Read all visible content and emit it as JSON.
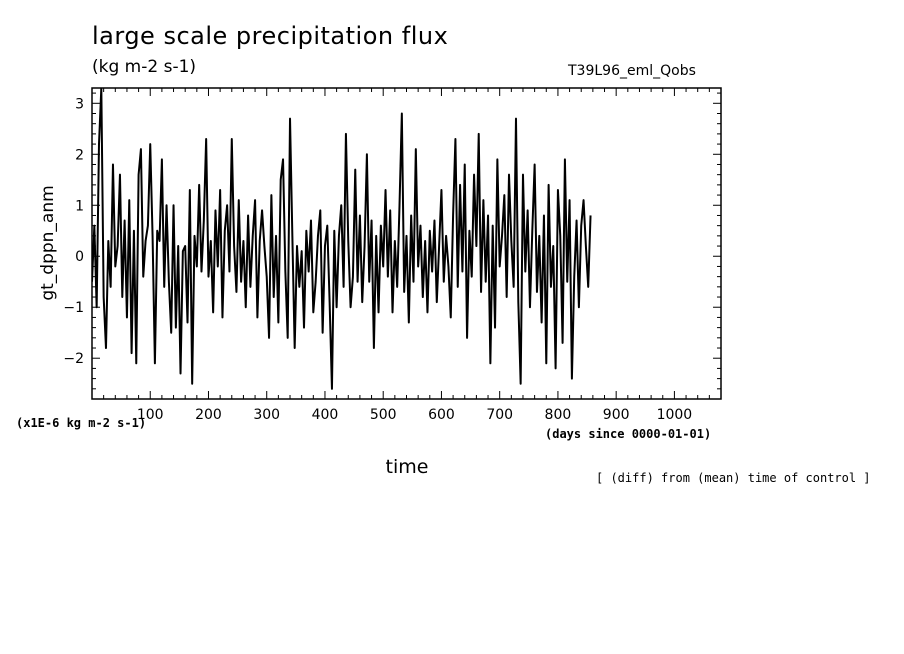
{
  "chart_data": {
    "type": "line",
    "title": "large scale precipitation flux",
    "units_label": "(kg m-2 s-1)",
    "case_label": "T39L96_eml_Qobs",
    "ylabel": "gt_dppn_anm",
    "xlabel": "time",
    "scale_note": "(x1E-6 kg m-2 s-1)",
    "time_units_label": "(days since 0000-01-01)",
    "diff_note": "[ (diff) from (mean) time of control ]",
    "xlim": [
      0,
      1080
    ],
    "ylim": [
      -2.8,
      3.3
    ],
    "x_ticks": [
      100,
      200,
      300,
      400,
      500,
      600,
      700,
      800,
      900,
      1000
    ],
    "x_tick_labels": [
      "100",
      "200",
      "300",
      "400",
      "500",
      "600",
      "700",
      "800",
      "900",
      "1000"
    ],
    "y_ticks": [
      -2,
      -1,
      0,
      1,
      2,
      3
    ],
    "y_tick_labels": [
      "−2",
      "−1",
      "0",
      "1",
      "2",
      "3"
    ],
    "series": [
      {
        "name": "gt_dppn_anm",
        "x_start": 0,
        "x_step": 4,
        "values": [
          -0.5,
          0.6,
          -1.0,
          2.2,
          3.3,
          -0.8,
          -1.8,
          0.3,
          -0.6,
          1.8,
          -0.2,
          0.2,
          1.6,
          -0.8,
          0.7,
          -1.2,
          1.1,
          -1.9,
          0.5,
          -2.1,
          1.6,
          2.1,
          -0.4,
          0.3,
          0.6,
          2.2,
          0.4,
          -2.1,
          0.5,
          0.3,
          1.9,
          -0.6,
          1.0,
          -0.5,
          -1.5,
          1.0,
          -1.4,
          0.2,
          -2.3,
          0.1,
          0.2,
          -1.3,
          1.3,
          -2.5,
          0.4,
          -0.2,
          1.4,
          -0.3,
          0.7,
          2.3,
          -0.4,
          0.3,
          -1.1,
          0.9,
          -0.2,
          1.3,
          -1.2,
          0.5,
          1.0,
          -0.3,
          2.3,
          0.2,
          -0.7,
          1.1,
          -0.5,
          0.3,
          -1.0,
          0.8,
          -0.6,
          0.4,
          1.1,
          -1.2,
          0.3,
          0.9,
          0.2,
          -0.4,
          -1.6,
          1.2,
          -0.8,
          0.4,
          -1.3,
          1.5,
          1.9,
          -0.3,
          -1.6,
          2.7,
          0.4,
          -1.8,
          0.2,
          -0.6,
          0.1,
          -1.4,
          0.5,
          -0.3,
          0.7,
          -1.1,
          -0.5,
          0.4,
          0.9,
          -1.5,
          0.2,
          0.6,
          -0.9,
          -2.6,
          0.5,
          -1.0,
          0.4,
          1.0,
          -0.6,
          2.4,
          0.3,
          -1.0,
          -0.4,
          1.7,
          -0.5,
          0.8,
          -0.9,
          0.2,
          2.0,
          -0.5,
          0.7,
          -1.8,
          0.4,
          -1.1,
          0.6,
          -0.2,
          1.3,
          -0.4,
          0.9,
          -1.1,
          0.3,
          -0.6,
          1.0,
          2.8,
          -0.7,
          0.4,
          -1.3,
          0.8,
          -0.5,
          2.1,
          -0.2,
          0.6,
          -0.8,
          0.3,
          -1.1,
          0.5,
          -0.3,
          0.7,
          -0.9,
          0.2,
          1.3,
          -0.5,
          0.4,
          -0.2,
          -1.2,
          0.8,
          2.3,
          -0.6,
          1.4,
          -0.3,
          1.8,
          -1.6,
          0.5,
          -0.4,
          1.6,
          0.2,
          2.4,
          -0.7,
          1.1,
          -0.5,
          0.8,
          -2.1,
          0.6,
          -1.4,
          1.9,
          -0.2,
          0.4,
          1.2,
          -0.8,
          1.6,
          0.3,
          -0.6,
          2.7,
          -0.9,
          -2.5,
          1.6,
          -0.3,
          0.9,
          -1.0,
          0.5,
          1.8,
          -0.7,
          0.4,
          -1.3,
          0.8,
          -2.1,
          1.4,
          -0.6,
          0.2,
          -2.2,
          1.3,
          0.4,
          -1.7,
          1.9,
          -0.5,
          1.1,
          -2.4,
          -0.4,
          0.7,
          -1.0,
          0.6,
          1.1,
          0.2,
          -0.6,
          0.8
        ]
      }
    ]
  }
}
